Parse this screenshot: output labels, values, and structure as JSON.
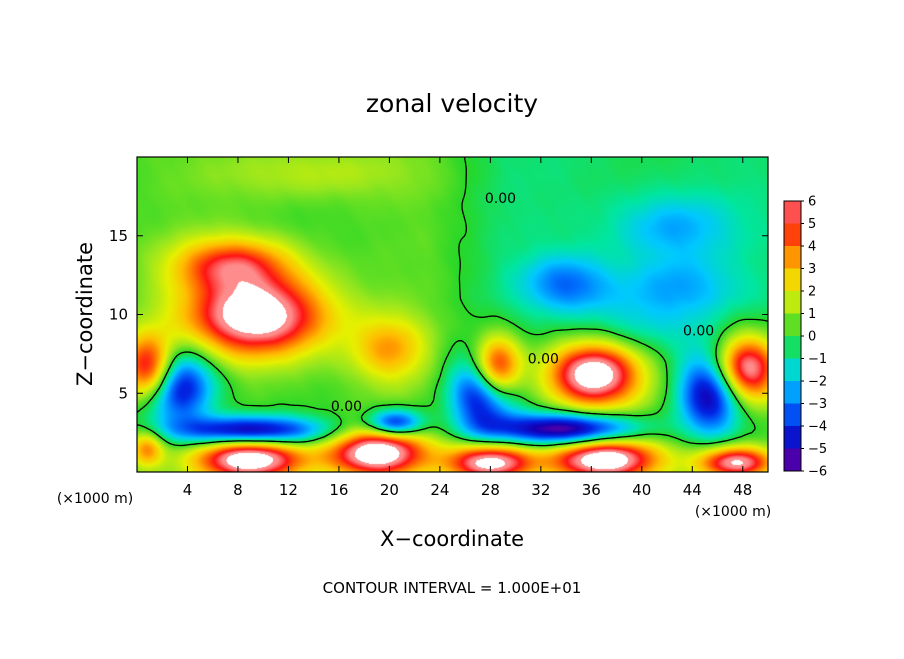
{
  "chart_data": {
    "type": "heatmap",
    "title": "zonal velocity",
    "xlabel": "X−coordinate",
    "ylabel": "Z−coordinate",
    "x_unit": "(×1000 m)",
    "y_unit": "(×1000 m)",
    "xlim": [
      0,
      50
    ],
    "ylim": [
      0,
      20
    ],
    "x_ticks": [
      4,
      8,
      12,
      16,
      20,
      24,
      28,
      32,
      36,
      40,
      44,
      48
    ],
    "y_ticks": [
      5,
      10,
      15
    ],
    "x_tick_labels": [
      "4",
      "8",
      "12",
      "16",
      "20",
      "24",
      "28",
      "32",
      "36",
      "40",
      "44",
      "48"
    ],
    "y_tick_labels": [
      "5",
      "10",
      "15"
    ],
    "colorbar": {
      "range": [
        -6,
        6
      ],
      "ticks": [
        6,
        5,
        4,
        3,
        2,
        1,
        0,
        -1,
        -2,
        -3,
        -4,
        -5,
        -6
      ],
      "tick_labels": [
        "6",
        "5",
        "4",
        "3",
        "2",
        "1",
        "0",
        "−1",
        "−2",
        "−3",
        "−4",
        "−5",
        "−6"
      ]
    },
    "contour_labels": [
      {
        "text": "0.00",
        "x": 28.8,
        "z": 17.4
      },
      {
        "text": "0.00",
        "x": 16.6,
        "z": 4.2
      },
      {
        "text": "0.00",
        "x": 32.2,
        "z": 7.2
      },
      {
        "text": "0.00",
        "x": 44.5,
        "z": 9.0
      }
    ],
    "contour_interval": "CONTOUR INTERVAL =  1.000E+01",
    "features": [
      {
        "kind": "positive",
        "cx": 9.5,
        "cz": 9.9,
        "rx": 6.5,
        "rz": 3.0,
        "peak": 7.5
      },
      {
        "kind": "positive",
        "cx": 7.5,
        "cz": 13.2,
        "rx": 5.5,
        "rz": 2.0,
        "peak": 4.3
      },
      {
        "kind": "positive",
        "cx": 20.0,
        "cz": 7.8,
        "rx": 3.5,
        "rz": 2.5,
        "peak": 3.0
      },
      {
        "kind": "positive",
        "cx": 36.2,
        "cz": 6.2,
        "rx": 4.2,
        "rz": 2.4,
        "peak": 7.5
      },
      {
        "kind": "positive",
        "cx": 28.5,
        "cz": 6.5,
        "rx": 2.2,
        "rz": 2.4,
        "peak": 7.0
      },
      {
        "kind": "positive",
        "cx": 1.0,
        "cz": 6.5,
        "rx": 2.5,
        "rz": 2.5,
        "peak": 7.0
      },
      {
        "kind": "positive",
        "cx": 48.2,
        "cz": 6.5,
        "rx": 3.0,
        "rz": 2.5,
        "peak": 7.0
      },
      {
        "kind": "positive",
        "cx": 9.0,
        "cz": 0.8,
        "rx": 5.0,
        "rz": 1.6,
        "peak": 7.5
      },
      {
        "kind": "positive",
        "cx": 19.0,
        "cz": 1.2,
        "rx": 4.5,
        "rz": 1.8,
        "peak": 7.5
      },
      {
        "kind": "positive",
        "cx": 28.0,
        "cz": 0.6,
        "rx": 4.0,
        "rz": 1.4,
        "peak": 7.0
      },
      {
        "kind": "positive",
        "cx": 37.0,
        "cz": 0.8,
        "rx": 5.0,
        "rz": 1.6,
        "peak": 7.5
      },
      {
        "kind": "positive",
        "cx": 47.5,
        "cz": 0.6,
        "rx": 3.5,
        "rz": 1.2,
        "peak": 6.5
      },
      {
        "kind": "positive",
        "cx": 0.8,
        "cz": 1.5,
        "rx": 1.6,
        "rz": 1.4,
        "peak": 3.5
      },
      {
        "kind": "negative",
        "cx": 3.0,
        "cz": 5.5,
        "rx": 3.5,
        "rz": 2.8,
        "peak": -6.0
      },
      {
        "kind": "negative",
        "cx": 27.5,
        "cz": 5.0,
        "rx": 3.0,
        "rz": 3.0,
        "peak": -6.0
      },
      {
        "kind": "negative",
        "cx": 34.0,
        "cz": 2.7,
        "rx": 6.5,
        "rz": 1.2,
        "peak": -6.5
      },
      {
        "kind": "negative",
        "cx": 45.5,
        "cz": 5.0,
        "rx": 3.0,
        "rz": 3.0,
        "peak": -6.0
      },
      {
        "kind": "negative",
        "cx": 9.0,
        "cz": 2.6,
        "rx": 7.0,
        "rz": 1.1,
        "peak": -6.0
      },
      {
        "kind": "negative",
        "cx": 20.5,
        "cz": 3.1,
        "rx": 2.5,
        "rz": 1.0,
        "peak": -5.0
      },
      {
        "kind": "negative",
        "cx": 40.5,
        "cz": 9.5,
        "rx": 7.0,
        "rz": 3.0,
        "peak": -1.5
      },
      {
        "kind": "negative",
        "cx": 34.0,
        "cz": 12.0,
        "rx": 4.0,
        "rz": 2.0,
        "peak": -2.5
      },
      {
        "kind": "negative",
        "cx": 42.5,
        "cz": 15.5,
        "rx": 5.5,
        "rz": 2.5,
        "peak": -2.0
      },
      {
        "kind": "negative",
        "cx": 43.0,
        "cz": 12.0,
        "rx": 5.0,
        "rz": 2.0,
        "peak": -1.5
      },
      {
        "kind": "positive",
        "cx": 14.0,
        "cz": 19.0,
        "rx": 9.0,
        "rz": 2.0,
        "peak": 1.2
      }
    ]
  }
}
